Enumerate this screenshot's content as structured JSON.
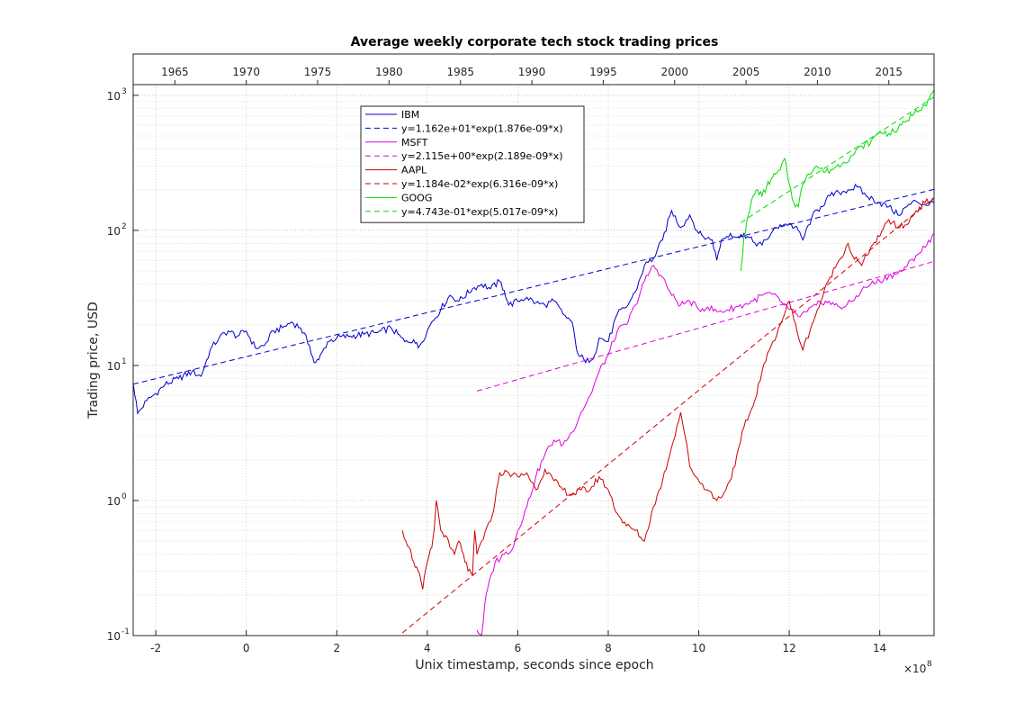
{
  "chart_data": {
    "type": "line",
    "title": "Average weekly corporate tech stock trading prices",
    "xlabel": "Unix timestamp, seconds since epoch",
    "ylabel": "Trading price, USD",
    "x_exponent_label": "×10",
    "x_exponent_power": "8",
    "x_scale_factor": 100000000,
    "xlim": [
      -2.5,
      15.2
    ],
    "ylim": [
      0.1,
      1200
    ],
    "yscale": "log",
    "grid": true,
    "minor_grid": true,
    "legend_position": "top-center",
    "x_ticks": [
      -2,
      0,
      2,
      4,
      6,
      8,
      10,
      12,
      14
    ],
    "x_tick_labels": [
      "-2",
      "0",
      "2",
      "4",
      "6",
      "8",
      "10",
      "12",
      "14"
    ],
    "y_ticks": [
      {
        "value": 0.1,
        "base": "10",
        "exp": "-1"
      },
      {
        "value": 1,
        "base": "10",
        "exp": "0"
      },
      {
        "value": 10,
        "base": "10",
        "exp": "1"
      },
      {
        "value": 100,
        "base": "10",
        "exp": "2"
      },
      {
        "value": 1000,
        "base": "10",
        "exp": "3"
      }
    ],
    "top_axis_years": [
      "1965",
      "1970",
      "1975",
      "1980",
      "1985",
      "1990",
      "1995",
      "2000",
      "2005",
      "2010",
      "2015"
    ],
    "series": [
      {
        "name": "IBM",
        "color": "#0000cc",
        "style": "solid",
        "points": [
          [
            -2.5,
            7.5
          ],
          [
            -2.4,
            4.4
          ],
          [
            -2.2,
            5.5
          ],
          [
            -2.0,
            6.2
          ],
          [
            -1.8,
            7.2
          ],
          [
            -1.5,
            8.0
          ],
          [
            -1.2,
            9.0
          ],
          [
            -1.0,
            8.3
          ],
          [
            -0.8,
            13.0
          ],
          [
            -0.6,
            16.0
          ],
          [
            -0.4,
            18.0
          ],
          [
            -0.2,
            16.5
          ],
          [
            0.0,
            18.0
          ],
          [
            0.2,
            13.5
          ],
          [
            0.4,
            14.0
          ],
          [
            0.6,
            18.0
          ],
          [
            0.8,
            19.0
          ],
          [
            1.0,
            21.0
          ],
          [
            1.2,
            19.0
          ],
          [
            1.4,
            14.0
          ],
          [
            1.5,
            10.5
          ],
          [
            1.6,
            11.0
          ],
          [
            1.8,
            15.0
          ],
          [
            2.0,
            16.0
          ],
          [
            2.3,
            16.5
          ],
          [
            2.6,
            17.0
          ],
          [
            2.9,
            17.5
          ],
          [
            3.2,
            19.0
          ],
          [
            3.5,
            15.0
          ],
          [
            3.7,
            15.5
          ],
          [
            3.8,
            13.5
          ],
          [
            4.0,
            18.0
          ],
          [
            4.1,
            21.0
          ],
          [
            4.3,
            26.0
          ],
          [
            4.5,
            33.0
          ],
          [
            4.7,
            30.0
          ],
          [
            5.0,
            37.0
          ],
          [
            5.2,
            40.0
          ],
          [
            5.4,
            37.0
          ],
          [
            5.6,
            42.0
          ],
          [
            5.7,
            36.0
          ],
          [
            5.8,
            28.0
          ],
          [
            6.0,
            30.0
          ],
          [
            6.2,
            32.0
          ],
          [
            6.4,
            29.0
          ],
          [
            6.6,
            28.0
          ],
          [
            6.8,
            30.0
          ],
          [
            7.0,
            24.0
          ],
          [
            7.2,
            21.0
          ],
          [
            7.3,
            13.0
          ],
          [
            7.5,
            10.5
          ],
          [
            7.7,
            12.0
          ],
          [
            7.8,
            16.0
          ],
          [
            8.0,
            15.0
          ],
          [
            8.2,
            24.0
          ],
          [
            8.4,
            27.0
          ],
          [
            8.6,
            35.0
          ],
          [
            8.8,
            55.0
          ],
          [
            9.0,
            62.0
          ],
          [
            9.2,
            85.0
          ],
          [
            9.4,
            140.0
          ],
          [
            9.6,
            105.0
          ],
          [
            9.8,
            130.0
          ],
          [
            10.0,
            95.0
          ],
          [
            10.1,
            90.0
          ],
          [
            10.3,
            85.0
          ],
          [
            10.4,
            60.0
          ],
          [
            10.5,
            85.0
          ],
          [
            10.7,
            95.0
          ],
          [
            10.9,
            88.0
          ],
          [
            11.0,
            95.0
          ],
          [
            11.2,
            82.0
          ],
          [
            11.4,
            78.0
          ],
          [
            11.6,
            95.0
          ],
          [
            11.8,
            110.0
          ],
          [
            12.0,
            112.0
          ],
          [
            12.2,
            100.0
          ],
          [
            12.3,
            85.0
          ],
          [
            12.5,
            125.0
          ],
          [
            12.7,
            150.0
          ],
          [
            12.9,
            180.0
          ],
          [
            13.1,
            190.0
          ],
          [
            13.3,
            200.0
          ],
          [
            13.5,
            210.0
          ],
          [
            13.7,
            180.0
          ],
          [
            14.0,
            160.0
          ],
          [
            14.2,
            150.0
          ],
          [
            14.4,
            130.0
          ],
          [
            14.6,
            150.0
          ],
          [
            14.8,
            165.0
          ],
          [
            15.0,
            155.0
          ],
          [
            15.2,
            160.0
          ]
        ]
      },
      {
        "name": "y=1.162e+01*exp(1.876e-09*x)",
        "color": "#0000cc",
        "style": "dashed",
        "fit": {
          "a": 11.62,
          "b": 1.876e-09
        },
        "x_range": [
          -2.5,
          15.2
        ]
      },
      {
        "name": "MSFT",
        "color": "#e000e0",
        "style": "solid",
        "points": [
          [
            5.1,
            0.11
          ],
          [
            5.2,
            0.1
          ],
          [
            5.3,
            0.2
          ],
          [
            5.5,
            0.35
          ],
          [
            5.7,
            0.4
          ],
          [
            5.9,
            0.45
          ],
          [
            6.0,
            0.6
          ],
          [
            6.2,
            0.9
          ],
          [
            6.4,
            1.5
          ],
          [
            6.6,
            2.2
          ],
          [
            6.8,
            2.8
          ],
          [
            7.0,
            2.6
          ],
          [
            7.2,
            3.2
          ],
          [
            7.4,
            4.5
          ],
          [
            7.6,
            6.0
          ],
          [
            7.8,
            9.0
          ],
          [
            8.0,
            12.0
          ],
          [
            8.2,
            18.0
          ],
          [
            8.4,
            20.0
          ],
          [
            8.6,
            28.0
          ],
          [
            8.8,
            42.0
          ],
          [
            9.0,
            55.0
          ],
          [
            9.2,
            45.0
          ],
          [
            9.4,
            33.0
          ],
          [
            9.6,
            28.0
          ],
          [
            9.8,
            30.0
          ],
          [
            10.0,
            26.0
          ],
          [
            10.2,
            27.0
          ],
          [
            10.4,
            25.0
          ],
          [
            10.6,
            25.5
          ],
          [
            10.8,
            27.0
          ],
          [
            11.0,
            28.0
          ],
          [
            11.2,
            30.0
          ],
          [
            11.4,
            33.0
          ],
          [
            11.6,
            34.0
          ],
          [
            11.8,
            30.0
          ],
          [
            12.0,
            26.0
          ],
          [
            12.2,
            23.0
          ],
          [
            12.4,
            25.0
          ],
          [
            12.6,
            28.0
          ],
          [
            12.8,
            30.0
          ],
          [
            13.0,
            28.0
          ],
          [
            13.2,
            27.0
          ],
          [
            13.4,
            30.0
          ],
          [
            13.6,
            36.0
          ],
          [
            13.8,
            40.0
          ],
          [
            14.0,
            42.0
          ],
          [
            14.2,
            46.0
          ],
          [
            14.4,
            48.0
          ],
          [
            14.6,
            54.0
          ],
          [
            14.8,
            65.0
          ],
          [
            15.0,
            75.0
          ],
          [
            15.2,
            95.0
          ]
        ]
      },
      {
        "name": "y=2.115e+00*exp(2.189e-09*x)",
        "color": "#e000e0",
        "style": "dashed",
        "fit": {
          "a": 2.115,
          "b": 2.189e-09
        },
        "x_range": [
          5.1,
          15.2
        ]
      },
      {
        "name": "AAPL",
        "color": "#cc0000",
        "style": "solid",
        "points": [
          [
            3.45,
            0.6
          ],
          [
            3.6,
            0.45
          ],
          [
            3.7,
            0.35
          ],
          [
            3.8,
            0.3
          ],
          [
            3.9,
            0.22
          ],
          [
            4.0,
            0.35
          ],
          [
            4.1,
            0.45
          ],
          [
            4.15,
            0.6
          ],
          [
            4.2,
            1.0
          ],
          [
            4.3,
            0.6
          ],
          [
            4.4,
            0.55
          ],
          [
            4.5,
            0.45
          ],
          [
            4.6,
            0.4
          ],
          [
            4.7,
            0.5
          ],
          [
            4.8,
            0.4
          ],
          [
            4.9,
            0.3
          ],
          [
            5.0,
            0.28
          ],
          [
            5.05,
            0.6
          ],
          [
            5.1,
            0.4
          ],
          [
            5.2,
            0.5
          ],
          [
            5.4,
            0.7
          ],
          [
            5.5,
            1.0
          ],
          [
            5.6,
            1.6
          ],
          [
            5.8,
            1.6
          ],
          [
            6.0,
            1.5
          ],
          [
            6.2,
            1.6
          ],
          [
            6.4,
            1.2
          ],
          [
            6.6,
            1.7
          ],
          [
            6.8,
            1.4
          ],
          [
            7.0,
            1.2
          ],
          [
            7.2,
            1.1
          ],
          [
            7.4,
            1.2
          ],
          [
            7.6,
            1.2
          ],
          [
            7.8,
            1.5
          ],
          [
            8.0,
            1.2
          ],
          [
            8.2,
            0.8
          ],
          [
            8.4,
            0.65
          ],
          [
            8.6,
            0.6
          ],
          [
            8.8,
            0.5
          ],
          [
            9.0,
            0.9
          ],
          [
            9.2,
            1.4
          ],
          [
            9.4,
            2.5
          ],
          [
            9.6,
            4.5
          ],
          [
            9.7,
            3.0
          ],
          [
            9.8,
            1.8
          ],
          [
            10.0,
            1.4
          ],
          [
            10.2,
            1.2
          ],
          [
            10.4,
            1.0
          ],
          [
            10.6,
            1.2
          ],
          [
            10.8,
            1.8
          ],
          [
            11.0,
            3.5
          ],
          [
            11.2,
            5.0
          ],
          [
            11.4,
            9.0
          ],
          [
            11.6,
            14.0
          ],
          [
            11.8,
            20.0
          ],
          [
            12.0,
            30.0
          ],
          [
            12.1,
            22.0
          ],
          [
            12.3,
            13.0
          ],
          [
            12.5,
            20.0
          ],
          [
            12.7,
            30.0
          ],
          [
            12.9,
            45.0
          ],
          [
            13.1,
            60.0
          ],
          [
            13.3,
            80.0
          ],
          [
            13.4,
            65.0
          ],
          [
            13.6,
            55.0
          ],
          [
            13.8,
            75.0
          ],
          [
            14.0,
            90.0
          ],
          [
            14.2,
            120.0
          ],
          [
            14.4,
            105.0
          ],
          [
            14.6,
            110.0
          ],
          [
            14.8,
            140.0
          ],
          [
            15.0,
            160.0
          ],
          [
            15.2,
            175.0
          ]
        ]
      },
      {
        "name": "y=1.184e-02*exp(6.316e-09*x)",
        "color": "#cc0000",
        "style": "dashed",
        "fit": {
          "a": 0.01184,
          "b": 6.316e-09
        },
        "x_range": [
          3.45,
          15.2
        ]
      },
      {
        "name": "GOOG",
        "color": "#00dd00",
        "style": "solid",
        "points": [
          [
            10.93,
            50.0
          ],
          [
            11.0,
            90.0
          ],
          [
            11.1,
            130.0
          ],
          [
            11.2,
            180.0
          ],
          [
            11.3,
            200.0
          ],
          [
            11.4,
            180.0
          ],
          [
            11.5,
            210.0
          ],
          [
            11.6,
            240.0
          ],
          [
            11.7,
            260.0
          ],
          [
            11.8,
            280.0
          ],
          [
            11.9,
            340.0
          ],
          [
            12.0,
            220.0
          ],
          [
            12.1,
            160.0
          ],
          [
            12.2,
            150.0
          ],
          [
            12.3,
            220.0
          ],
          [
            12.4,
            260.0
          ],
          [
            12.6,
            300.0
          ],
          [
            12.8,
            270.0
          ],
          [
            13.0,
            290.0
          ],
          [
            13.2,
            320.0
          ],
          [
            13.4,
            360.0
          ],
          [
            13.6,
            420.0
          ],
          [
            13.8,
            450.0
          ],
          [
            14.0,
            540.0
          ],
          [
            14.2,
            520.0
          ],
          [
            14.4,
            560.0
          ],
          [
            14.6,
            650.0
          ],
          [
            14.8,
            780.0
          ],
          [
            15.0,
            850.0
          ],
          [
            15.1,
            950.0
          ],
          [
            15.2,
            1100.0
          ]
        ]
      },
      {
        "name": "y=4.743e-01*exp(5.017e-09*x)",
        "color": "#00dd00",
        "style": "dashed",
        "fit": {
          "a": 0.4743,
          "b": 5.017e-09
        },
        "x_range": [
          10.93,
          15.2
        ]
      }
    ]
  }
}
